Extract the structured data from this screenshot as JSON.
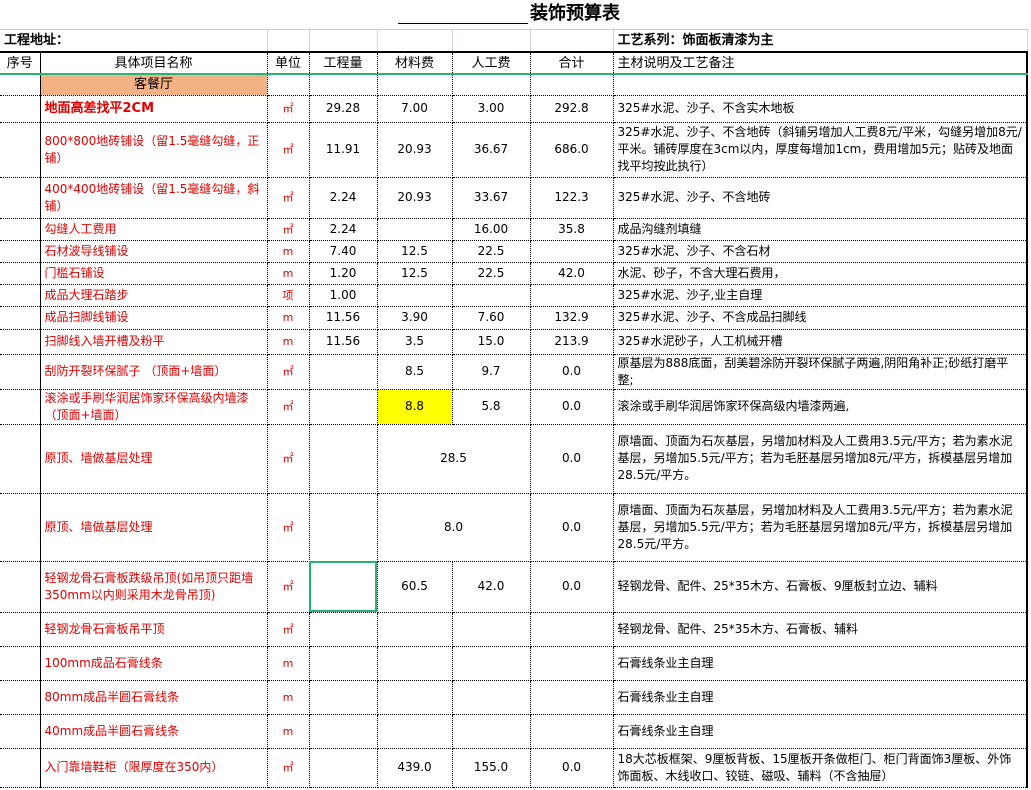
{
  "title": "装饰预算表",
  "address_label": "工程地址：",
  "series_label": "工艺系列：饰面板清漆为主",
  "headers": [
    "序号",
    "具体项目名称",
    "单位",
    "工程量",
    "材料费",
    "人工费",
    "合计",
    "主材说明及工艺备注"
  ],
  "section": "客餐厅",
  "colors": {
    "item_text": "#e00000",
    "section_bg": "#f4b183",
    "highlight": "#ffff00",
    "selection": "#22b573"
  },
  "rows": [
    {
      "name": "地面高差找平2CM",
      "bold": true,
      "unit": "㎡",
      "qty": "29.28",
      "mat": "7.00",
      "labor": "3.00",
      "total": "292.8",
      "note": "325#水泥、沙子、不含实木地板"
    },
    {
      "name": "800*800地砖铺设（留1.5毫缝勾缝，正铺）",
      "unit": "㎡",
      "qty": "11.91",
      "mat": "20.93",
      "labor": "36.67",
      "total": "686.0",
      "note": "325#水泥、沙子、不含地砖（斜铺另增加人工费8元/平米，勾缝另增加8元/平米。铺砖厚度在3cm以内，厚度每增加1cm，费用增加5元；贴砖及地面找平均按此执行）"
    },
    {
      "name": "400*400地砖铺设（留1.5毫缝勾缝，斜铺）",
      "unit": "㎡",
      "qty": "2.24",
      "mat": "20.93",
      "labor": "33.67",
      "total": "122.3",
      "note": "325#水泥、沙子、不含地砖"
    },
    {
      "name": "勾缝人工费用",
      "unit": "㎡",
      "qty": "2.24",
      "mat": "",
      "labor": "16.00",
      "total": "35.8",
      "note": "成品沟缝剂填缝"
    },
    {
      "name": "石材波导线铺设",
      "unit": "m",
      "qty": "7.40",
      "mat": "12.5",
      "labor": "22.5",
      "total": "",
      "note": "325#水泥、沙子、不含石材"
    },
    {
      "name": "门槛石铺设",
      "unit": "m",
      "qty": "1.20",
      "mat": "12.5",
      "labor": "22.5",
      "total": "42.0",
      "note": "水泥、砂子，不含大理石费用，"
    },
    {
      "name": "成品大理石踏步",
      "unit": "项",
      "qty": "1.00",
      "mat": "",
      "labor": "",
      "total": "",
      "note": "325#水泥、沙子,业主自理"
    },
    {
      "name": "成品扫脚线铺设",
      "unit": "m",
      "qty": "11.56",
      "mat": "3.90",
      "labor": "7.60",
      "total": "132.9",
      "note": "325#水泥、沙子、不含成品扫脚线"
    },
    {
      "name": "扫脚线入墙开槽及粉平",
      "unit": "m",
      "qty": "11.56",
      "mat": "3.5",
      "labor": "15.0",
      "total": "213.9",
      "note": "325#水泥砂子，人工机械开槽"
    },
    {
      "name": "刮防开裂环保腻子  （顶面+墙面）",
      "unit": "㎡",
      "qty": "",
      "mat": "8.5",
      "labor": "9.7",
      "total": "0.0",
      "note": "原基层为888底面，刮美碧涂防开裂环保腻子两遍,阴阳角补正;砂纸打磨平整;"
    },
    {
      "name": "滚涂或手刷华润居饰家环保高级内墙漆  （顶面+墙面）",
      "unit": "㎡",
      "qty": "",
      "mat": "8.8",
      "labor": "5.8",
      "total": "0.0",
      "highlight": true,
      "note": "滚涂或手刷华润居饰家环保高级内墙漆两遍,"
    },
    {
      "name": "原顶、墙做基层处理",
      "unit": "㎡",
      "qty": "",
      "merged": "28.5",
      "total": "0.0",
      "note": "原墙面、顶面为石灰基层，另增加材料及人工费用3.5元/平方；若为素水泥基层，另增加5.5元/平方；若为毛胚基层另增加8元/平方，拆模基层另增加28.5元/平方。"
    },
    {
      "name": "原顶、墙做基层处理",
      "unit": "㎡",
      "qty": "",
      "merged": "8.0",
      "total": "0.0",
      "note": "原墙面、顶面为石灰基层，另增加材料及人工费用3.5元/平方；若为素水泥基层，另增加5.5元/平方；若为毛胚基层另增加8元/平方，拆模基层另增加28.5元/平方。"
    },
    {
      "name": "轻钢龙骨石膏板跌级吊顶(如吊顶只距墙350mm以内则采用木龙骨吊顶)",
      "unit": "㎡",
      "qty": "",
      "mat": "60.5",
      "labor": "42.0",
      "total": "0.0",
      "selected": true,
      "note": "轻钢龙骨、配件、25*35木方、石膏板、9厘板封立边、辅料"
    },
    {
      "name": "轻钢龙骨石膏板吊平顶",
      "unit": "㎡",
      "qty": "",
      "mat": "",
      "labor": "",
      "total": "",
      "note": "轻钢龙骨、配件、25*35木方、石膏板、辅料"
    },
    {
      "name": "100mm成品石膏线条",
      "unit": "m",
      "qty": "",
      "mat": "",
      "labor": "",
      "total": "",
      "note": "石膏线条业主自理"
    },
    {
      "name": "80mm成品半圆石膏线条",
      "unit": "m",
      "qty": "",
      "mat": "",
      "labor": "",
      "total": "",
      "note": "石膏线条业主自理"
    },
    {
      "name": "40mm成品半圆石膏线条",
      "unit": "m",
      "qty": "",
      "mat": "",
      "labor": "",
      "total": "",
      "note": "石膏线条业主自理"
    },
    {
      "name": "入门靠墙鞋柜（限厚度在350内）",
      "unit": "㎡",
      "qty": "",
      "mat": "439.0",
      "labor": "155.0",
      "total": "0.0",
      "note": "18大芯板框架、9厘板背板、15厘板开条做柜门、柜门背面饰3厘板、外饰饰面板、木线收口、铰链、磁吸、辅料（不含抽屉）"
    }
  ]
}
